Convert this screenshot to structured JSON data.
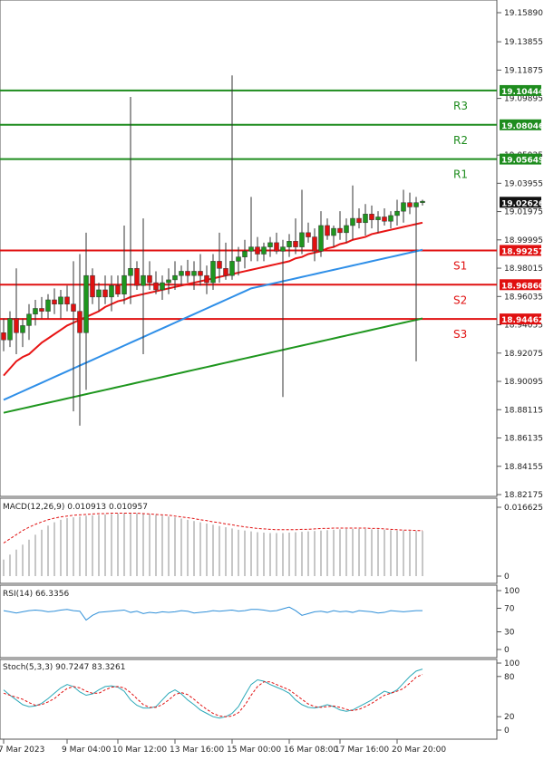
{
  "chart_data": [
    {
      "type": "candlestick",
      "panel": "price",
      "y_ticks": [
        "19.15890",
        "19.13855",
        "19.11875",
        "19.09895",
        "19.05925",
        "19.03955",
        "19.01975",
        "18.99995",
        "18.98015",
        "18.96035",
        "18.94055",
        "18.92075",
        "18.90095",
        "18.88115",
        "18.86135",
        "18.84155",
        "18.82175"
      ],
      "ylim": [
        18.82175,
        19.1589
      ],
      "current_price": {
        "value": 19.02626,
        "label": "19.02626"
      },
      "levels": [
        {
          "name": "R3",
          "value": 19.10444,
          "label": "19.10444",
          "color": "#1e8c1e"
        },
        {
          "name": "R2",
          "value": 19.08046,
          "label": "19.08046",
          "color": "#1e8c1e"
        },
        {
          "name": "R1",
          "value": 19.05649,
          "label": "19.05649",
          "color": "#1e8c1e"
        },
        {
          "name": "S1",
          "value": 18.99257,
          "label": "18.99257",
          "color": "#e01010"
        },
        {
          "name": "S2",
          "value": 18.9686,
          "label": "18.96860",
          "color": "#e01010"
        },
        {
          "name": "S3",
          "value": 18.94462,
          "label": "18.94462",
          "color": "#e01010"
        }
      ],
      "x_ticks": [
        {
          "label": "7 Mar 2023",
          "index": 0
        },
        {
          "label": "9 Mar 04:00",
          "index": 10
        },
        {
          "label": "10 Mar 12:00",
          "index": 18
        },
        {
          "label": "13 Mar 16:00",
          "index": 27
        },
        {
          "label": "15 Mar 00:00",
          "index": 36
        },
        {
          "label": "16 Mar 08:00",
          "index": 45
        },
        {
          "label": "17 Mar 16:00",
          "index": 53
        },
        {
          "label": "20 Mar 20:00",
          "index": 62
        }
      ],
      "candles": [
        [
          18.935,
          18.945,
          18.922,
          18.93
        ],
        [
          18.93,
          18.95,
          18.925,
          18.945
        ],
        [
          18.945,
          18.98,
          18.92,
          18.935
        ],
        [
          18.935,
          18.945,
          18.925,
          18.94
        ],
        [
          18.94,
          18.955,
          18.93,
          18.948
        ],
        [
          18.948,
          18.958,
          18.94,
          18.952
        ],
        [
          18.952,
          18.96,
          18.945,
          18.95
        ],
        [
          18.95,
          18.962,
          18.945,
          18.958
        ],
        [
          18.958,
          18.966,
          18.948,
          18.955
        ],
        [
          18.955,
          18.965,
          18.945,
          18.96
        ],
        [
          18.96,
          18.968,
          18.95,
          18.955
        ],
        [
          18.955,
          18.985,
          18.88,
          18.95
        ],
        [
          18.95,
          18.99,
          18.87,
          18.935
        ],
        [
          18.935,
          19.005,
          18.895,
          18.975
        ],
        [
          18.975,
          18.98,
          18.955,
          18.96
        ],
        [
          18.96,
          18.97,
          18.95,
          18.965
        ],
        [
          18.965,
          18.975,
          18.955,
          18.96
        ],
        [
          18.96,
          18.975,
          18.95,
          18.968
        ],
        [
          18.968,
          18.975,
          18.96,
          18.962
        ],
        [
          18.962,
          19.01,
          18.955,
          18.975
        ],
        [
          18.975,
          19.1,
          18.955,
          18.98
        ],
        [
          18.98,
          18.985,
          18.965,
          18.968
        ],
        [
          18.968,
          19.015,
          18.92,
          18.975
        ],
        [
          18.975,
          18.985,
          18.965,
          18.97
        ],
        [
          18.97,
          18.978,
          18.962,
          18.965
        ],
        [
          18.965,
          18.975,
          18.958,
          18.97
        ],
        [
          18.97,
          18.98,
          18.962,
          18.972
        ],
        [
          18.972,
          18.985,
          18.965,
          18.975
        ],
        [
          18.975,
          18.982,
          18.968,
          18.978
        ],
        [
          18.978,
          18.986,
          18.97,
          18.975
        ],
        [
          18.975,
          18.985,
          18.965,
          18.978
        ],
        [
          18.978,
          18.99,
          18.968,
          18.975
        ],
        [
          18.975,
          18.982,
          18.962,
          18.97
        ],
        [
          18.97,
          18.99,
          18.965,
          18.985
        ],
        [
          18.985,
          19.005,
          18.97,
          18.98
        ],
        [
          18.98,
          18.998,
          18.972,
          18.975
        ],
        [
          18.975,
          19.115,
          18.972,
          18.985
        ],
        [
          18.985,
          18.995,
          18.975,
          18.988
        ],
        [
          18.988,
          19.0,
          18.98,
          18.992
        ],
        [
          18.992,
          19.03,
          18.985,
          18.995
        ],
        [
          18.995,
          19.002,
          18.985,
          18.99
        ],
        [
          18.99,
          18.998,
          18.985,
          18.995
        ],
        [
          18.995,
          19.002,
          18.988,
          18.998
        ],
        [
          18.998,
          19.005,
          18.99,
          18.992
        ],
        [
          18.992,
          19.0,
          18.89,
          18.995
        ],
        [
          18.995,
          19.004,
          18.988,
          18.999
        ],
        [
          18.999,
          19.015,
          18.99,
          18.995
        ],
        [
          18.995,
          19.035,
          18.99,
          19.005
        ],
        [
          19.005,
          19.012,
          18.998,
          19.002
        ],
        [
          19.002,
          19.008,
          18.985,
          18.992
        ],
        [
          18.992,
          19.02,
          18.988,
          19.01
        ],
        [
          19.01,
          19.015,
          19.0,
          19.003
        ],
        [
          19.003,
          19.01,
          18.995,
          19.008
        ],
        [
          19.008,
          19.02,
          19.0,
          19.005
        ],
        [
          19.005,
          19.015,
          18.998,
          19.01
        ],
        [
          19.01,
          19.038,
          19.0,
          19.015
        ],
        [
          19.015,
          19.022,
          19.008,
          19.012
        ],
        [
          19.012,
          19.025,
          19.003,
          19.018
        ],
        [
          19.018,
          19.024,
          19.008,
          19.014
        ],
        [
          19.014,
          19.02,
          19.005,
          19.016
        ],
        [
          19.016,
          19.022,
          19.01,
          19.013
        ],
        [
          19.013,
          19.02,
          19.008,
          19.017
        ],
        [
          19.017,
          19.028,
          19.01,
          19.02
        ],
        [
          19.02,
          19.035,
          19.012,
          19.026
        ],
        [
          19.026,
          19.033,
          19.018,
          19.023
        ],
        [
          19.023,
          19.03,
          18.915,
          19.026
        ],
        [
          19.026,
          19.028,
          19.024,
          19.027
        ]
      ],
      "moving_averages": [
        {
          "color": "#e81414",
          "values": [
            18.905,
            18.91,
            18.915,
            18.918,
            18.92,
            18.924,
            18.928,
            18.931,
            18.934,
            18.937,
            18.94,
            18.942,
            18.944,
            18.946,
            18.948,
            18.95,
            18.953,
            18.955,
            18.957,
            18.958,
            18.96,
            18.961,
            18.962,
            18.963,
            18.964,
            18.965,
            18.966,
            18.967,
            18.968,
            18.969,
            18.97,
            18.971,
            18.972,
            18.973,
            18.974,
            18.975,
            18.976,
            18.977,
            18.978,
            18.979,
            18.98,
            18.981,
            18.982,
            18.983,
            18.984,
            18.985,
            18.987,
            18.988,
            18.99,
            18.991,
            18.992,
            18.994,
            18.995,
            18.997,
            18.998,
            19.0,
            19.001,
            19.002,
            19.004,
            19.005,
            19.006,
            19.007,
            19.008,
            19.009,
            19.01,
            19.011,
            19.012
          ]
        },
        {
          "color": "#2f8fe8",
          "values": [
            18.888,
            18.89,
            18.892,
            18.894,
            18.896,
            18.898,
            18.9,
            18.902,
            18.904,
            18.906,
            18.908,
            18.91,
            18.912,
            18.914,
            18.916,
            18.918,
            18.92,
            18.922,
            18.924,
            18.926,
            18.928,
            18.93,
            18.932,
            18.934,
            18.936,
            18.938,
            18.94,
            18.942,
            18.944,
            18.946,
            18.948,
            18.95,
            18.952,
            18.954,
            18.956,
            18.958,
            18.96,
            18.962,
            18.964,
            18.966,
            18.967,
            18.968,
            18.969,
            18.97,
            18.971,
            18.972,
            18.973,
            18.974,
            18.975,
            18.976,
            18.977,
            18.978,
            18.979,
            18.98,
            18.981,
            18.982,
            18.983,
            18.984,
            18.985,
            18.986,
            18.987,
            18.988,
            18.989,
            18.99,
            18.991,
            18.992,
            18.993
          ]
        },
        {
          "color": "#1e961e",
          "values": [
            18.879,
            18.88,
            18.881,
            18.882,
            18.883,
            18.884,
            18.885,
            18.886,
            18.887,
            18.888,
            18.889,
            18.89,
            18.891,
            18.892,
            18.893,
            18.894,
            18.895,
            18.896,
            18.897,
            18.898,
            18.899,
            18.9,
            18.901,
            18.902,
            18.903,
            18.904,
            18.905,
            18.906,
            18.907,
            18.908,
            18.909,
            18.91,
            18.911,
            18.912,
            18.913,
            18.914,
            18.915,
            18.916,
            18.917,
            18.918,
            18.919,
            18.92,
            18.921,
            18.922,
            18.923,
            18.924,
            18.925,
            18.926,
            18.927,
            18.928,
            18.929,
            18.93,
            18.931,
            18.932,
            18.933,
            18.934,
            18.935,
            18.936,
            18.937,
            18.938,
            18.939,
            18.94,
            18.941,
            18.942,
            18.943,
            18.944,
            18.945
          ]
        }
      ],
      "colors": {
        "up": "#1e961e",
        "down": "#e01010",
        "wick": "#333333"
      }
    },
    {
      "type": "bar+line",
      "panel": "macd",
      "label": "MACD(12,26,9) 0.010913 0.010957",
      "y_ticks": [
        "0.016625",
        "0"
      ],
      "ylim": [
        0,
        0.016625
      ],
      "histogram": [
        0.004,
        0.0052,
        0.0064,
        0.0076,
        0.0088,
        0.01,
        0.0112,
        0.0122,
        0.013,
        0.0136,
        0.014,
        0.0142,
        0.0144,
        0.0146,
        0.0147,
        0.0148,
        0.0149,
        0.015,
        0.0151,
        0.0152,
        0.0152,
        0.0152,
        0.0151,
        0.015,
        0.0148,
        0.0146,
        0.0144,
        0.0142,
        0.0139,
        0.0136,
        0.0133,
        0.013,
        0.0127,
        0.0124,
        0.0121,
        0.0118,
        0.0115,
        0.0112,
        0.011,
        0.0108,
        0.0106,
        0.0105,
        0.0104,
        0.0104,
        0.0104,
        0.0105,
        0.0106,
        0.0107,
        0.0108,
        0.0109,
        0.011,
        0.0111,
        0.0112,
        0.0113,
        0.0114,
        0.0114,
        0.0114,
        0.0114,
        0.0113,
        0.0113,
        0.0112,
        0.0111,
        0.011,
        0.011,
        0.0109,
        0.0109,
        0.0109
      ],
      "signal": [
        0.008,
        0.009,
        0.01,
        0.011,
        0.0118,
        0.0125,
        0.0131,
        0.0136,
        0.014,
        0.0143,
        0.0145,
        0.0147,
        0.0148,
        0.0149,
        0.015,
        0.0151,
        0.0151,
        0.0152,
        0.0152,
        0.0152,
        0.0152,
        0.0152,
        0.0151,
        0.015,
        0.0149,
        0.0148,
        0.0147,
        0.0145,
        0.0143,
        0.0141,
        0.0139,
        0.0136,
        0.0134,
        0.0131,
        0.0129,
        0.0126,
        0.0124,
        0.0121,
        0.0119,
        0.0117,
        0.0115,
        0.0114,
        0.0113,
        0.0112,
        0.0112,
        0.0112,
        0.0112,
        0.0113,
        0.0113,
        0.0114,
        0.0115,
        0.0115,
        0.0116,
        0.0116,
        0.0116,
        0.0116,
        0.0116,
        0.0116,
        0.0115,
        0.0115,
        0.0114,
        0.0113,
        0.0112,
        0.0111,
        0.0111,
        0.011,
        0.011
      ],
      "colors": {
        "bars": "#b4b4b4",
        "signal": "#e01010"
      }
    },
    {
      "type": "line",
      "panel": "rsi",
      "label": "RSI(14) 66.3356",
      "y_ticks": [
        "100",
        "70",
        "30",
        "0"
      ],
      "ylim": [
        0,
        100
      ],
      "values": [
        66,
        64,
        62,
        64,
        66,
        67,
        66,
        64,
        65,
        67,
        68,
        66,
        65,
        50,
        58,
        63,
        64,
        65,
        66,
        67,
        63,
        65,
        61,
        63,
        62,
        64,
        63,
        64,
        66,
        65,
        62,
        63,
        64,
        66,
        65,
        66,
        67,
        65,
        66,
        68,
        68,
        67,
        65,
        66,
        69,
        72,
        66,
        58,
        61,
        64,
        65,
        63,
        66,
        64,
        65,
        63,
        66,
        65,
        64,
        62,
        63,
        66,
        65,
        64,
        65,
        66,
        66
      ],
      "color": "#2f8fd8"
    },
    {
      "type": "line",
      "panel": "stoch",
      "label": "Stoch(5,3,3) 90.7247 83.3261",
      "y_ticks": [
        "100",
        "80",
        "20",
        "0"
      ],
      "ylim": [
        0,
        100
      ],
      "k": [
        60,
        52,
        45,
        38,
        35,
        36,
        40,
        47,
        55,
        63,
        68,
        65,
        57,
        52,
        54,
        60,
        65,
        66,
        64,
        58,
        45,
        37,
        33,
        33,
        35,
        45,
        55,
        60,
        54,
        45,
        38,
        30,
        25,
        20,
        18,
        20,
        25,
        35,
        52,
        68,
        75,
        73,
        68,
        64,
        60,
        55,
        45,
        38,
        34,
        33,
        35,
        38,
        35,
        30,
        28,
        30,
        35,
        40,
        45,
        52,
        58,
        55,
        60,
        70,
        80,
        88,
        91
      ],
      "d": [
        55,
        52,
        49,
        46,
        41,
        37,
        38,
        42,
        47,
        55,
        62,
        65,
        63,
        58,
        55,
        55,
        60,
        64,
        65,
        63,
        56,
        47,
        38,
        34,
        34,
        38,
        45,
        53,
        56,
        53,
        46,
        38,
        31,
        25,
        21,
        20,
        21,
        26,
        37,
        52,
        65,
        72,
        72,
        68,
        64,
        60,
        53,
        46,
        39,
        35,
        34,
        35,
        36,
        34,
        31,
        29,
        31,
        35,
        40,
        46,
        52,
        55,
        58,
        62,
        70,
        79,
        83
      ],
      "colors": {
        "k": "#2aa8b8",
        "d": "#e01010"
      }
    }
  ]
}
